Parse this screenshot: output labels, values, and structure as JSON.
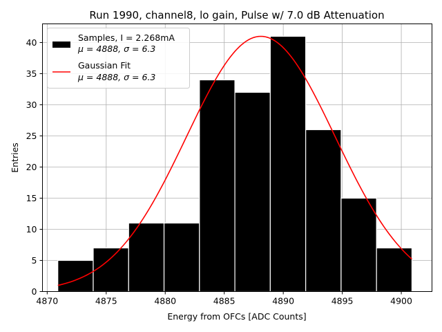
{
  "chart_data": {
    "type": "bar",
    "title": "Run 1990, channel8, lo gain, Pulse w/ 7.0 dB Attenuation",
    "xlabel": "Energy from OFCs [ADC Counts]",
    "ylabel": "Entries",
    "xlim": [
      4869.6,
      4902.6
    ],
    "ylim": [
      0,
      43
    ],
    "grid": true,
    "legend_position": "upper-left",
    "xticks": [
      4870,
      4875,
      4880,
      4885,
      4890,
      4895,
      4900
    ],
    "yticks": [
      0,
      5,
      10,
      15,
      20,
      25,
      30,
      35,
      40
    ],
    "histogram": {
      "name": "Samples, I = 2.268mA",
      "stats_label": "μ = 4888, σ = 6.3",
      "color": "#000000",
      "bins": [
        {
          "start": 4870.9,
          "end": 4873.9,
          "count": 5
        },
        {
          "start": 4873.9,
          "end": 4876.9,
          "count": 7
        },
        {
          "start": 4876.9,
          "end": 4879.9,
          "count": 11
        },
        {
          "start": 4879.9,
          "end": 4882.9,
          "count": 11
        },
        {
          "start": 4882.9,
          "end": 4885.9,
          "count": 34
        },
        {
          "start": 4885.9,
          "end": 4888.9,
          "count": 32
        },
        {
          "start": 4888.9,
          "end": 4891.9,
          "count": 41
        },
        {
          "start": 4891.9,
          "end": 4894.9,
          "count": 26
        },
        {
          "start": 4894.9,
          "end": 4897.9,
          "count": 15
        },
        {
          "start": 4897.9,
          "end": 4900.9,
          "count": 7
        }
      ]
    },
    "fit": {
      "name": "Gaussian Fit",
      "stats_label": "μ = 4888, σ = 6.3",
      "color": "#ff0000",
      "mu": 4888.1,
      "sigma": 6.3,
      "amplitude": 41,
      "x_range": [
        4870.9,
        4900.9
      ]
    }
  }
}
